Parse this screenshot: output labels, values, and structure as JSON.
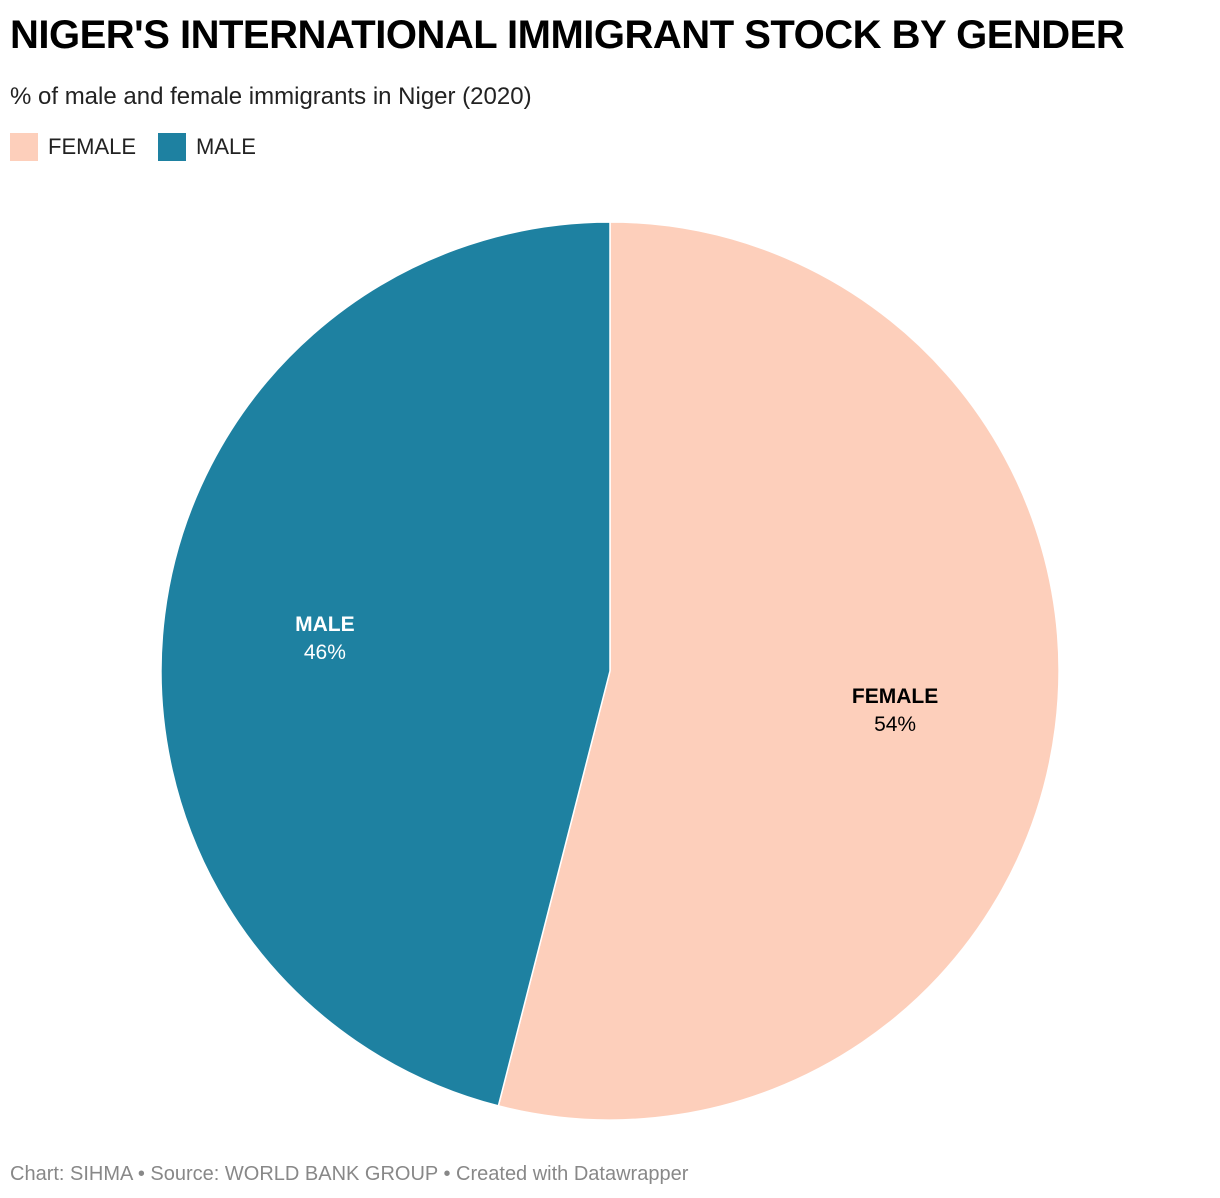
{
  "title": "NIGER'S INTERNATIONAL IMMIGRANT STOCK BY GENDER",
  "subtitle": "% of male and female immigrants in Niger (2020)",
  "legend": [
    {
      "label": "FEMALE",
      "color": "#fdcfbb"
    },
    {
      "label": "MALE",
      "color": "#1e81a1"
    }
  ],
  "footer": {
    "credit": "Chart: SIHMA",
    "separator": "•",
    "source": "Source: WORLD BANK GROUP",
    "tool": "Created with Datawrapper"
  },
  "chart_data": {
    "type": "pie",
    "categories": [
      "FEMALE",
      "MALE"
    ],
    "values": [
      54,
      46
    ],
    "value_labels": [
      "54%",
      "46%"
    ],
    "colors": [
      "#fdcfbb",
      "#1e81a1"
    ],
    "label_colors": [
      "#000000",
      "#ffffff"
    ],
    "title": "NIGER'S INTERNATIONAL IMMIGRANT STOCK BY GENDER",
    "subtitle": "% of male and female immigrants in Niger (2020)",
    "legend_placement": "top-left",
    "start": "12 o'clock",
    "direction": "clockwise"
  }
}
